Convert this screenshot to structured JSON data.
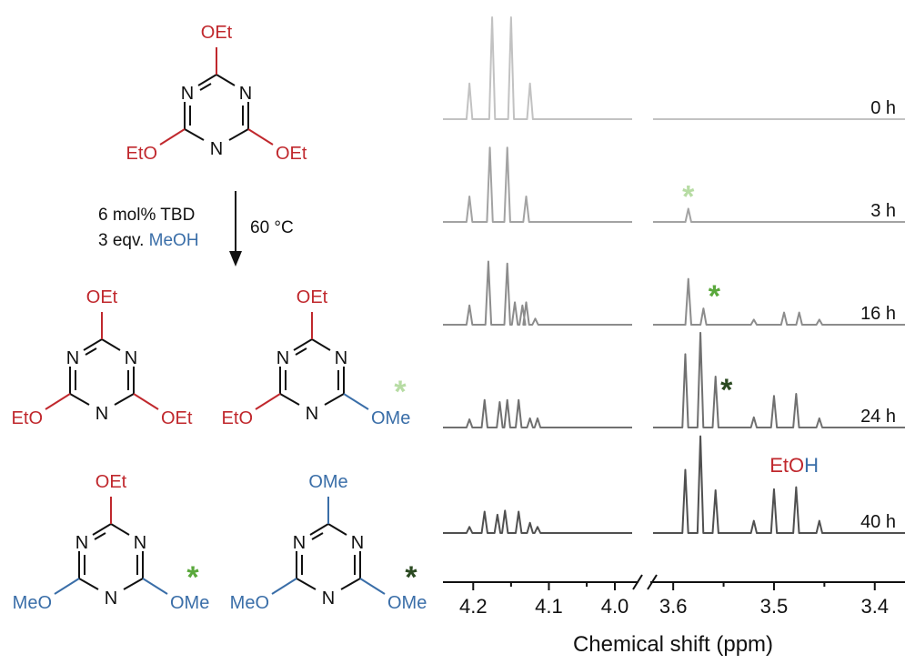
{
  "colors": {
    "ethoxy": "#c0282d",
    "methoxy": "#3a6ea8",
    "ring": "#111111",
    "star_light": "#b7dca4",
    "star_mid": "#5aa83c",
    "star_dark": "#2b4a22",
    "trace_0h": "#c2c2c2",
    "trace_3h": "#a3a3a3",
    "trace_16h": "#8c8c8c",
    "trace_24h": "#707070",
    "trace_40h": "#505050"
  },
  "scheme": {
    "reactant": {
      "top": "OEt",
      "left": "EtO",
      "right": "OEt",
      "n_top_left": "N",
      "n_top_right": "N",
      "n_bottom": "N"
    },
    "conditions": {
      "line1": "6 mol% TBD",
      "line2_prefix": "3 eqv. ",
      "line2_reagent": "MeOH",
      "temperature": "60 °C"
    },
    "product_a": {
      "top": "OEt",
      "left": "EtO",
      "right": "OEt",
      "n_top_left": "N",
      "n_top_right": "N",
      "n_bottom": "N"
    },
    "product_b": {
      "top": "OEt",
      "left": "EtO",
      "right": "OMe",
      "n_top_left": "N",
      "n_top_right": "N",
      "n_bottom": "N",
      "marker": "*"
    },
    "product_c": {
      "top": "OEt",
      "left": "MeO",
      "right": "OMe",
      "n_top_left": "N",
      "n_top_right": "N",
      "n_bottom": "N",
      "marker": "*"
    },
    "product_d": {
      "top": "OMe",
      "left": "MeO",
      "right": "OMe",
      "n_top_left": "N",
      "n_top_right": "N",
      "n_bottom": "N",
      "marker": "*"
    }
  },
  "chart_data": {
    "type": "line",
    "xlabel": "Chemical shift (ppm)",
    "x_reversed": true,
    "axis_break_between": [
      4.0,
      3.6
    ],
    "x_ticks": [
      "4.2",
      "4.1",
      "4.0",
      "3.6",
      "3.5",
      "3.4"
    ],
    "left_panel_xlim": [
      4.24,
      3.99
    ],
    "right_panel_xlim": [
      3.62,
      3.37
    ],
    "series": [
      {
        "name": "0 h",
        "peaks": [
          {
            "x": 4.205,
            "y": 0.35
          },
          {
            "x": 4.175,
            "y": 1.0
          },
          {
            "x": 4.15,
            "y": 1.0
          },
          {
            "x": 4.125,
            "y": 0.35
          }
        ]
      },
      {
        "name": "3 h",
        "peaks": [
          {
            "x": 4.205,
            "y": 0.25
          },
          {
            "x": 4.178,
            "y": 0.73
          },
          {
            "x": 4.155,
            "y": 0.73
          },
          {
            "x": 4.13,
            "y": 0.25
          },
          {
            "x": 3.585,
            "y": 0.13,
            "marker": "*"
          }
        ]
      },
      {
        "name": "16 h",
        "peaks": [
          {
            "x": 4.205,
            "y": 0.19
          },
          {
            "x": 4.18,
            "y": 0.62
          },
          {
            "x": 4.155,
            "y": 0.6
          },
          {
            "x": 4.145,
            "y": 0.22
          },
          {
            "x": 4.135,
            "y": 0.19
          },
          {
            "x": 4.13,
            "y": 0.22
          },
          {
            "x": 4.118,
            "y": 0.06
          },
          {
            "x": 3.585,
            "y": 0.45
          },
          {
            "x": 3.57,
            "y": 0.16,
            "marker": "*"
          },
          {
            "x": 3.52,
            "y": 0.05
          },
          {
            "x": 3.49,
            "y": 0.12
          },
          {
            "x": 3.475,
            "y": 0.12
          },
          {
            "x": 3.455,
            "y": 0.05
          }
        ]
      },
      {
        "name": "24 h",
        "peaks": [
          {
            "x": 4.205,
            "y": 0.08
          },
          {
            "x": 4.185,
            "y": 0.27
          },
          {
            "x": 4.165,
            "y": 0.25
          },
          {
            "x": 4.155,
            "y": 0.27
          },
          {
            "x": 4.14,
            "y": 0.27
          },
          {
            "x": 4.125,
            "y": 0.09
          },
          {
            "x": 4.115,
            "y": 0.09
          },
          {
            "x": 3.588,
            "y": 0.72
          },
          {
            "x": 3.573,
            "y": 0.93
          },
          {
            "x": 3.558,
            "y": 0.5,
            "marker": "*"
          },
          {
            "x": 3.52,
            "y": 0.1
          },
          {
            "x": 3.5,
            "y": 0.31
          },
          {
            "x": 3.478,
            "y": 0.33
          },
          {
            "x": 3.455,
            "y": 0.09
          }
        ]
      },
      {
        "name": "40 h",
        "peaks": [
          {
            "x": 4.205,
            "y": 0.06
          },
          {
            "x": 4.185,
            "y": 0.21
          },
          {
            "x": 4.168,
            "y": 0.18
          },
          {
            "x": 4.158,
            "y": 0.22
          },
          {
            "x": 4.14,
            "y": 0.21
          },
          {
            "x": 4.125,
            "y": 0.1
          },
          {
            "x": 4.115,
            "y": 0.06
          },
          {
            "x": 3.588,
            "y": 0.62
          },
          {
            "x": 3.573,
            "y": 0.95
          },
          {
            "x": 3.558,
            "y": 0.42
          },
          {
            "x": 3.52,
            "y": 0.12
          },
          {
            "x": 3.5,
            "y": 0.43
          },
          {
            "x": 3.478,
            "y": 0.45
          },
          {
            "x": 3.455,
            "y": 0.12
          }
        ]
      }
    ],
    "annotation": {
      "text_eto": "EtO",
      "text_h": "H"
    }
  }
}
